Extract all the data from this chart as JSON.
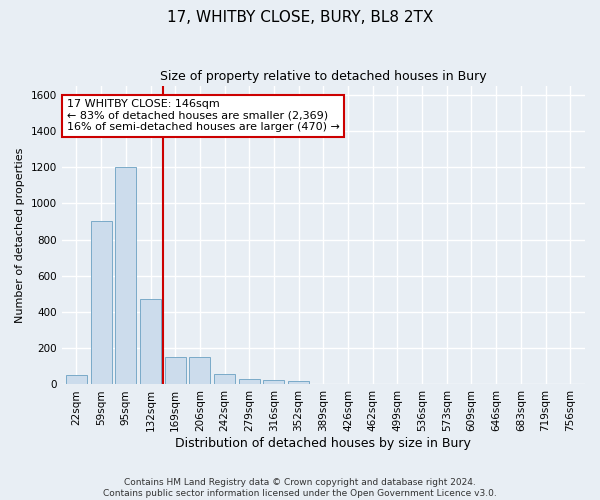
{
  "title1": "17, WHITBY CLOSE, BURY, BL8 2TX",
  "title2": "Size of property relative to detached houses in Bury",
  "xlabel": "Distribution of detached houses by size in Bury",
  "ylabel": "Number of detached properties",
  "annotation_line1": "17 WHITBY CLOSE: 146sqm",
  "annotation_line2": "← 83% of detached houses are smaller (2,369)",
  "annotation_line3": "16% of semi-detached houses are larger (470) →",
  "bar_color": "#ccdcec",
  "bar_edge_color": "#7aaac8",
  "vline_color": "#cc0000",
  "vline_x": 3.5,
  "categories": [
    "22sqm",
    "59sqm",
    "95sqm",
    "132sqm",
    "169sqm",
    "206sqm",
    "242sqm",
    "279sqm",
    "316sqm",
    "352sqm",
    "389sqm",
    "426sqm",
    "462sqm",
    "499sqm",
    "536sqm",
    "573sqm",
    "609sqm",
    "646sqm",
    "683sqm",
    "719sqm",
    "756sqm"
  ],
  "values": [
    50,
    900,
    1200,
    470,
    150,
    150,
    55,
    30,
    22,
    20,
    5,
    2,
    0,
    0,
    0,
    0,
    0,
    0,
    0,
    0,
    0
  ],
  "ylim": [
    0,
    1650
  ],
  "yticks": [
    0,
    200,
    400,
    600,
    800,
    1000,
    1200,
    1400,
    1600
  ],
  "footer1": "Contains HM Land Registry data © Crown copyright and database right 2024.",
  "footer2": "Contains public sector information licensed under the Open Government Licence v3.0.",
  "background_color": "#e8eef4",
  "plot_background": "#e8eef4",
  "grid_color": "#ffffff",
  "annotation_box_color": "#ffffff",
  "annotation_border_color": "#cc0000",
  "title1_fontsize": 11,
  "title2_fontsize": 9,
  "ylabel_fontsize": 8,
  "xlabel_fontsize": 9,
  "tick_fontsize": 7.5,
  "annotation_fontsize": 8,
  "footer_fontsize": 6.5
}
